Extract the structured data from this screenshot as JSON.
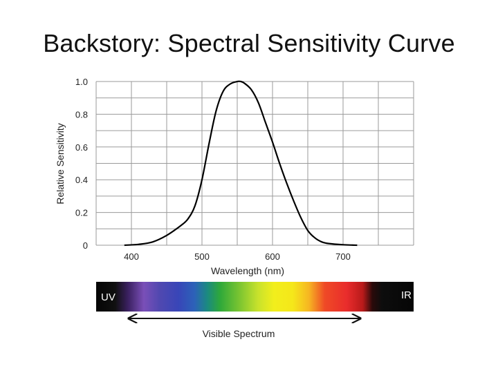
{
  "slide": {
    "title": "Backstory: Spectral Sensitivity Curve"
  },
  "chart_data": {
    "type": "line",
    "xlabel": "Wavelength (nm)",
    "ylabel": "Relative Sensitivity",
    "xlim": [
      350,
      800
    ],
    "ylim": [
      0,
      1.0
    ],
    "x_ticks": [
      "400",
      "500",
      "600",
      "700"
    ],
    "y_ticks": [
      "0",
      "0.2",
      "0.4",
      "0.6",
      "0.8",
      "1.0"
    ],
    "grid": true,
    "series": [
      {
        "x": [
          390,
          410,
          430,
          450,
          470,
          480,
          490,
          500,
          510,
          520,
          530,
          540,
          550,
          555,
          560,
          570,
          580,
          590,
          600,
          610,
          620,
          630,
          640,
          650,
          660,
          670,
          680,
          700,
          720
        ],
        "y": [
          0.0,
          0.005,
          0.02,
          0.06,
          0.12,
          0.16,
          0.24,
          0.4,
          0.62,
          0.82,
          0.94,
          0.985,
          1.0,
          1.0,
          0.99,
          0.95,
          0.87,
          0.75,
          0.63,
          0.5,
          0.38,
          0.27,
          0.17,
          0.09,
          0.045,
          0.02,
          0.01,
          0.003,
          0.0
        ],
        "color": "#000000"
      }
    ],
    "spectrum_bar": {
      "left_label": "UV",
      "right_label": "IR",
      "caption": "Visible Spectrum"
    }
  }
}
